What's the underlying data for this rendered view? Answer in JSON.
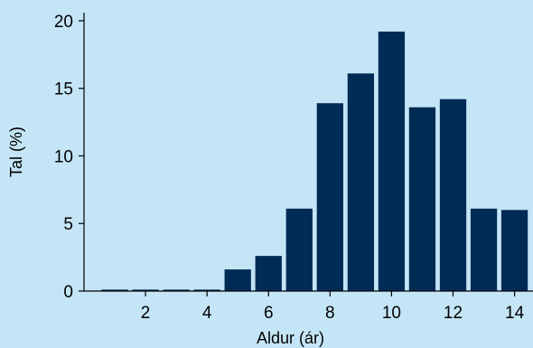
{
  "colors": {
    "page_background": "#c4e5f6",
    "plot_background": "#c4e5f6",
    "bar": "#002b55",
    "axis": "#000000"
  },
  "chart_data": {
    "type": "bar",
    "title": "",
    "xlabel": "Aldur (ár)",
    "ylabel": "Tal (%)",
    "categories": [
      1,
      2,
      3,
      4,
      5,
      6,
      7,
      8,
      9,
      10,
      11,
      12,
      13,
      14
    ],
    "values": [
      0.0,
      0.0,
      0.0,
      0.1,
      1.6,
      2.6,
      6.1,
      13.9,
      16.1,
      19.2,
      13.6,
      14.2,
      6.1,
      6.0
    ],
    "xlim": [
      0,
      14.6
    ],
    "ylim": [
      0,
      20.6
    ],
    "x_ticks": [
      2,
      4,
      6,
      8,
      10,
      12,
      14
    ],
    "y_ticks": [
      0,
      5,
      10,
      15,
      20
    ],
    "grid": false,
    "legend": "none"
  }
}
